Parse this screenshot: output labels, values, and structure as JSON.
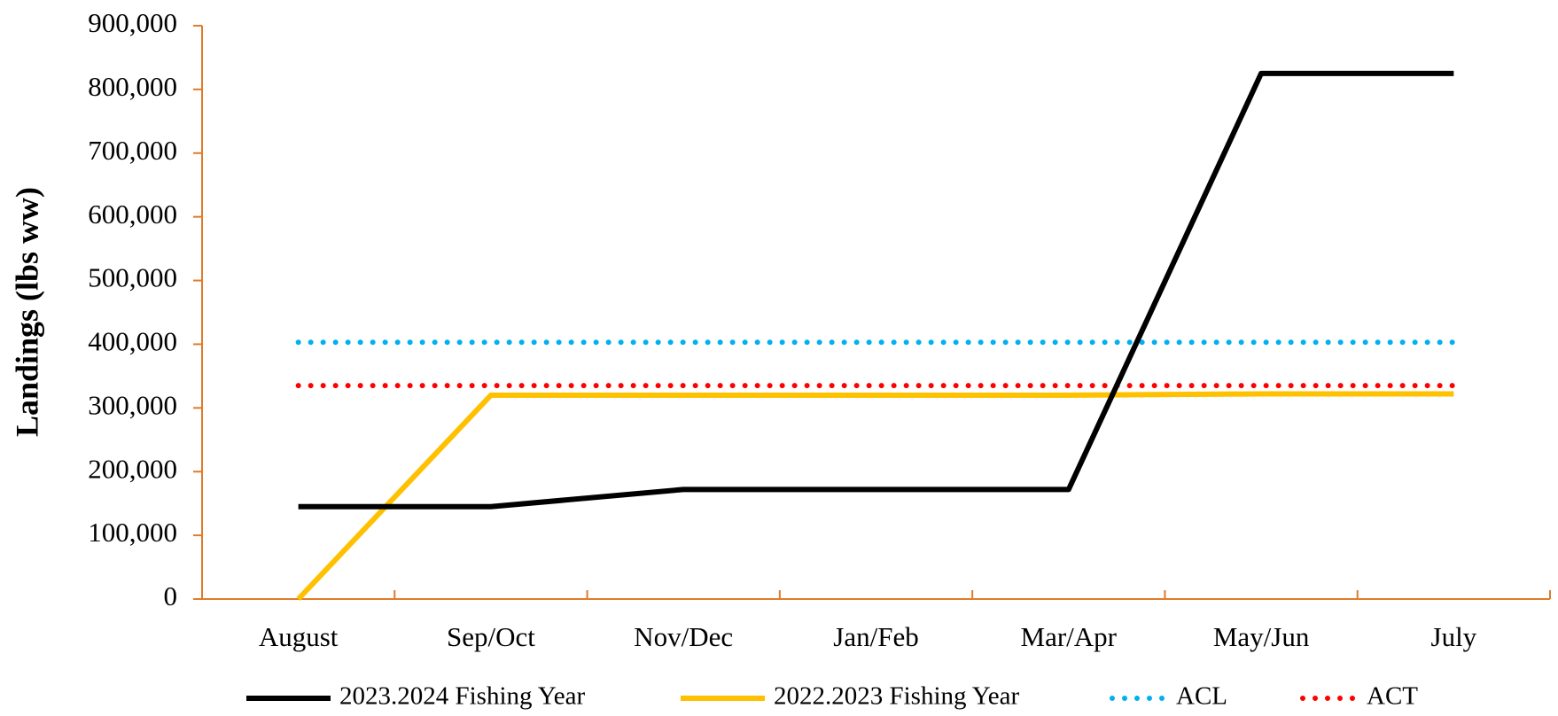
{
  "chart_data": {
    "type": "line",
    "y_label": "Landings (lbs ww)",
    "categories": [
      "August",
      "Sep/Oct",
      "Nov/Dec",
      "Jan/Feb",
      "Mar/Apr",
      "May/Jun",
      "July"
    ],
    "series": [
      {
        "name": "2023.2024 Fishing Year",
        "color": "#000000",
        "style": "solid",
        "values": [
          145000,
          145000,
          172000,
          172000,
          172000,
          825000,
          825000
        ]
      },
      {
        "name": "2022.2023 Fishing Year",
        "color": "#ffc000",
        "style": "solid",
        "values": [
          0,
          320000,
          320000,
          320000,
          320000,
          322000,
          322000
        ]
      },
      {
        "name": "ACL",
        "color": "#00b0f0",
        "style": "dotted",
        "values": [
          403000,
          403000,
          403000,
          403000,
          403000,
          403000,
          403000
        ]
      },
      {
        "name": "ACT",
        "color": "#ff0000",
        "style": "dotted",
        "values": [
          335000,
          335000,
          335000,
          335000,
          335000,
          335000,
          335000
        ]
      }
    ],
    "ylim": [
      0,
      900000
    ],
    "yticks": [
      0,
      {
        "value": 100000,
        "label": "100,000"
      },
      {
        "value": 200000,
        "label": "200,000"
      },
      {
        "value": 300000,
        "label": "300,000"
      },
      {
        "value": 400000,
        "label": "400,000"
      },
      {
        "value": 500000,
        "label": "500,000"
      },
      {
        "value": 600000,
        "label": "600,000"
      },
      {
        "value": 700000,
        "label": "700,000"
      },
      {
        "value": 800000,
        "label": "800,000"
      },
      {
        "value": 900000,
        "label": "900,000"
      }
    ],
    "legend": "bottom"
  }
}
